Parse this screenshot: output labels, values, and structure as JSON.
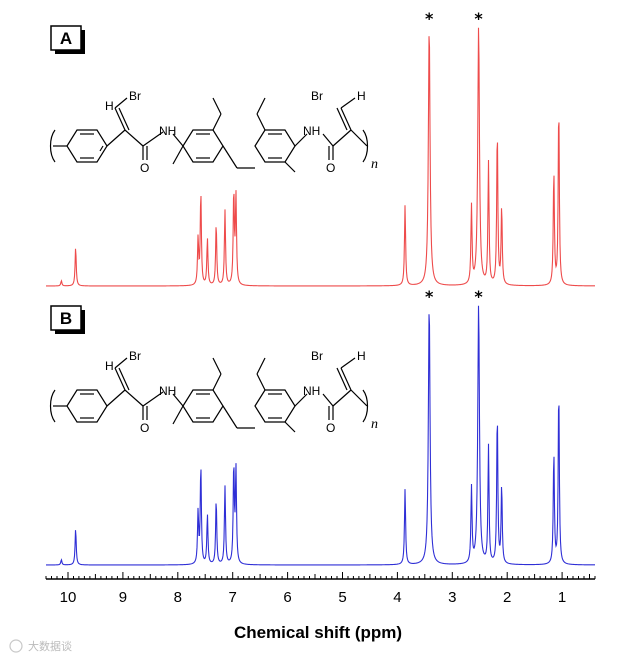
{
  "chart_data": {
    "type": "line",
    "xlabel": "Chemical shift (ppm)",
    "xlim": [
      10.4,
      0.4
    ],
    "xticks": [
      "10",
      "9",
      "8",
      "7",
      "6",
      "5",
      "4",
      "3",
      "2",
      "1"
    ],
    "peak_marker": "*",
    "panels": [
      {
        "label": "A",
        "color": "#ee4b4b",
        "starred_peaks_ppm": [
          3.42,
          2.52
        ],
        "peaks": [
          {
            "ppm": 10.12,
            "height": 0.02
          },
          {
            "ppm": 9.86,
            "height": 0.15
          },
          {
            "ppm": 7.63,
            "height": 0.18
          },
          {
            "ppm": 7.58,
            "height": 0.36
          },
          {
            "ppm": 7.46,
            "height": 0.18
          },
          {
            "ppm": 7.3,
            "height": 0.24
          },
          {
            "ppm": 7.14,
            "height": 0.29
          },
          {
            "ppm": 6.98,
            "height": 0.36
          },
          {
            "ppm": 6.94,
            "height": 0.34
          },
          {
            "ppm": 3.86,
            "height": 0.31
          },
          {
            "ppm": 3.42,
            "height": 1.0
          },
          {
            "ppm": 2.65,
            "height": 0.3
          },
          {
            "ppm": 2.52,
            "height": 1.0
          },
          {
            "ppm": 2.34,
            "height": 0.47
          },
          {
            "ppm": 2.18,
            "height": 0.6
          },
          {
            "ppm": 2.1,
            "height": 0.3
          },
          {
            "ppm": 1.15,
            "height": 0.44
          },
          {
            "ppm": 1.06,
            "height": 0.7
          }
        ]
      },
      {
        "label": "B",
        "color": "#2f2fd6",
        "starred_peaks_ppm": [
          3.42,
          2.52
        ],
        "peaks": [
          {
            "ppm": 10.12,
            "height": 0.02
          },
          {
            "ppm": 9.86,
            "height": 0.14
          },
          {
            "ppm": 7.63,
            "height": 0.2
          },
          {
            "ppm": 7.58,
            "height": 0.38
          },
          {
            "ppm": 7.46,
            "height": 0.19
          },
          {
            "ppm": 7.3,
            "height": 0.25
          },
          {
            "ppm": 7.14,
            "height": 0.3
          },
          {
            "ppm": 6.98,
            "height": 0.38
          },
          {
            "ppm": 6.94,
            "height": 0.36
          },
          {
            "ppm": 3.86,
            "height": 0.29
          },
          {
            "ppm": 3.42,
            "height": 1.0
          },
          {
            "ppm": 2.65,
            "height": 0.29
          },
          {
            "ppm": 2.52,
            "height": 1.0
          },
          {
            "ppm": 2.34,
            "height": 0.45
          },
          {
            "ppm": 2.18,
            "height": 0.58
          },
          {
            "ppm": 2.1,
            "height": 0.3
          },
          {
            "ppm": 1.15,
            "height": 0.43
          },
          {
            "ppm": 1.06,
            "height": 0.68
          }
        ]
      }
    ]
  },
  "molecule": {
    "atoms": {
      "br": "Br",
      "h": "H",
      "nh": "NH",
      "o": "O",
      "n": "n"
    }
  },
  "watermark": "大数据谈"
}
